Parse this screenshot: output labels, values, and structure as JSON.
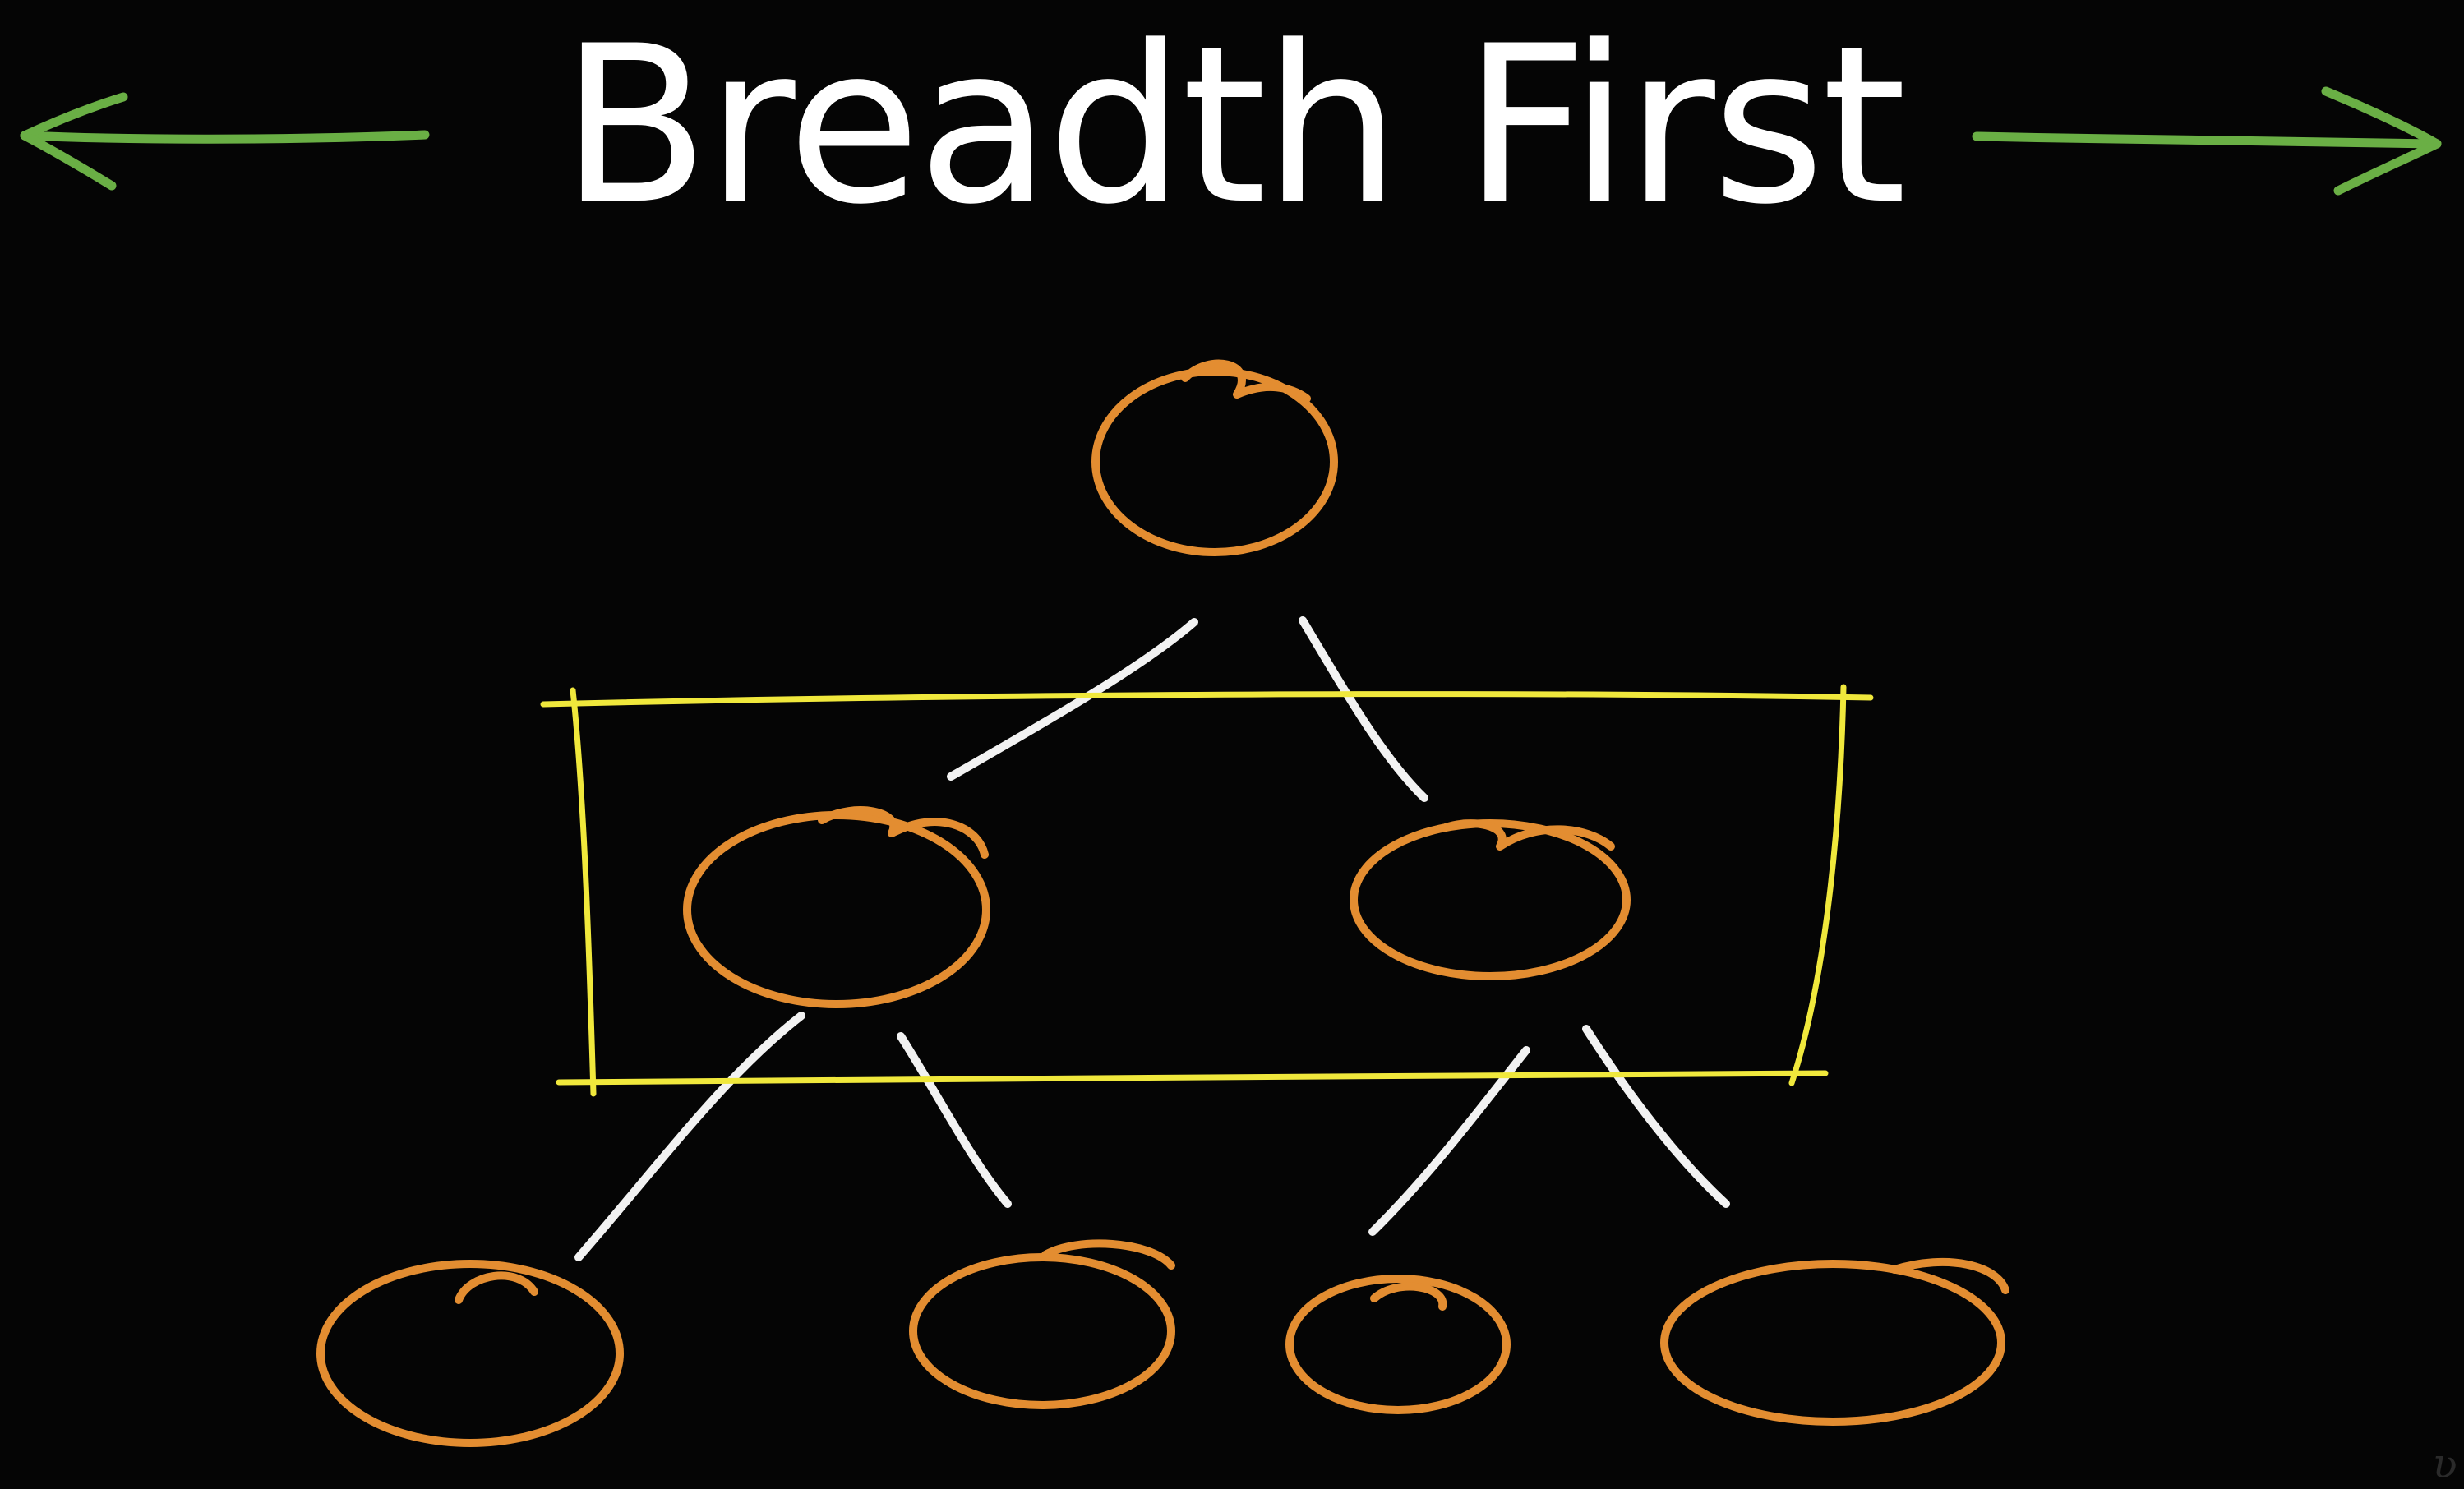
{
  "title": "Breadth First",
  "colors": {
    "background": "#050505",
    "title": "#ffffff",
    "arrow": "#6aaf45",
    "node": "#e38d31",
    "edge": "#f2f2f2",
    "highlight": "#f0e83c"
  },
  "icons": {
    "left": "arrow-left-icon",
    "right": "arrow-right-icon"
  },
  "tree": {
    "levels": [
      [
        "root"
      ],
      [
        "left-child",
        "right-child"
      ],
      [
        "left-left-grandchild",
        "left-right-grandchild",
        "right-left-grandchild",
        "right-right-grandchild"
      ]
    ],
    "edges": [
      [
        "root",
        "left-child"
      ],
      [
        "root",
        "right-child"
      ],
      [
        "left-child",
        "left-left-grandchild"
      ],
      [
        "left-child",
        "left-right-grandchild"
      ],
      [
        "right-child",
        "right-left-grandchild"
      ],
      [
        "right-child",
        "right-right-grandchild"
      ]
    ],
    "highlighted_level": 1
  }
}
